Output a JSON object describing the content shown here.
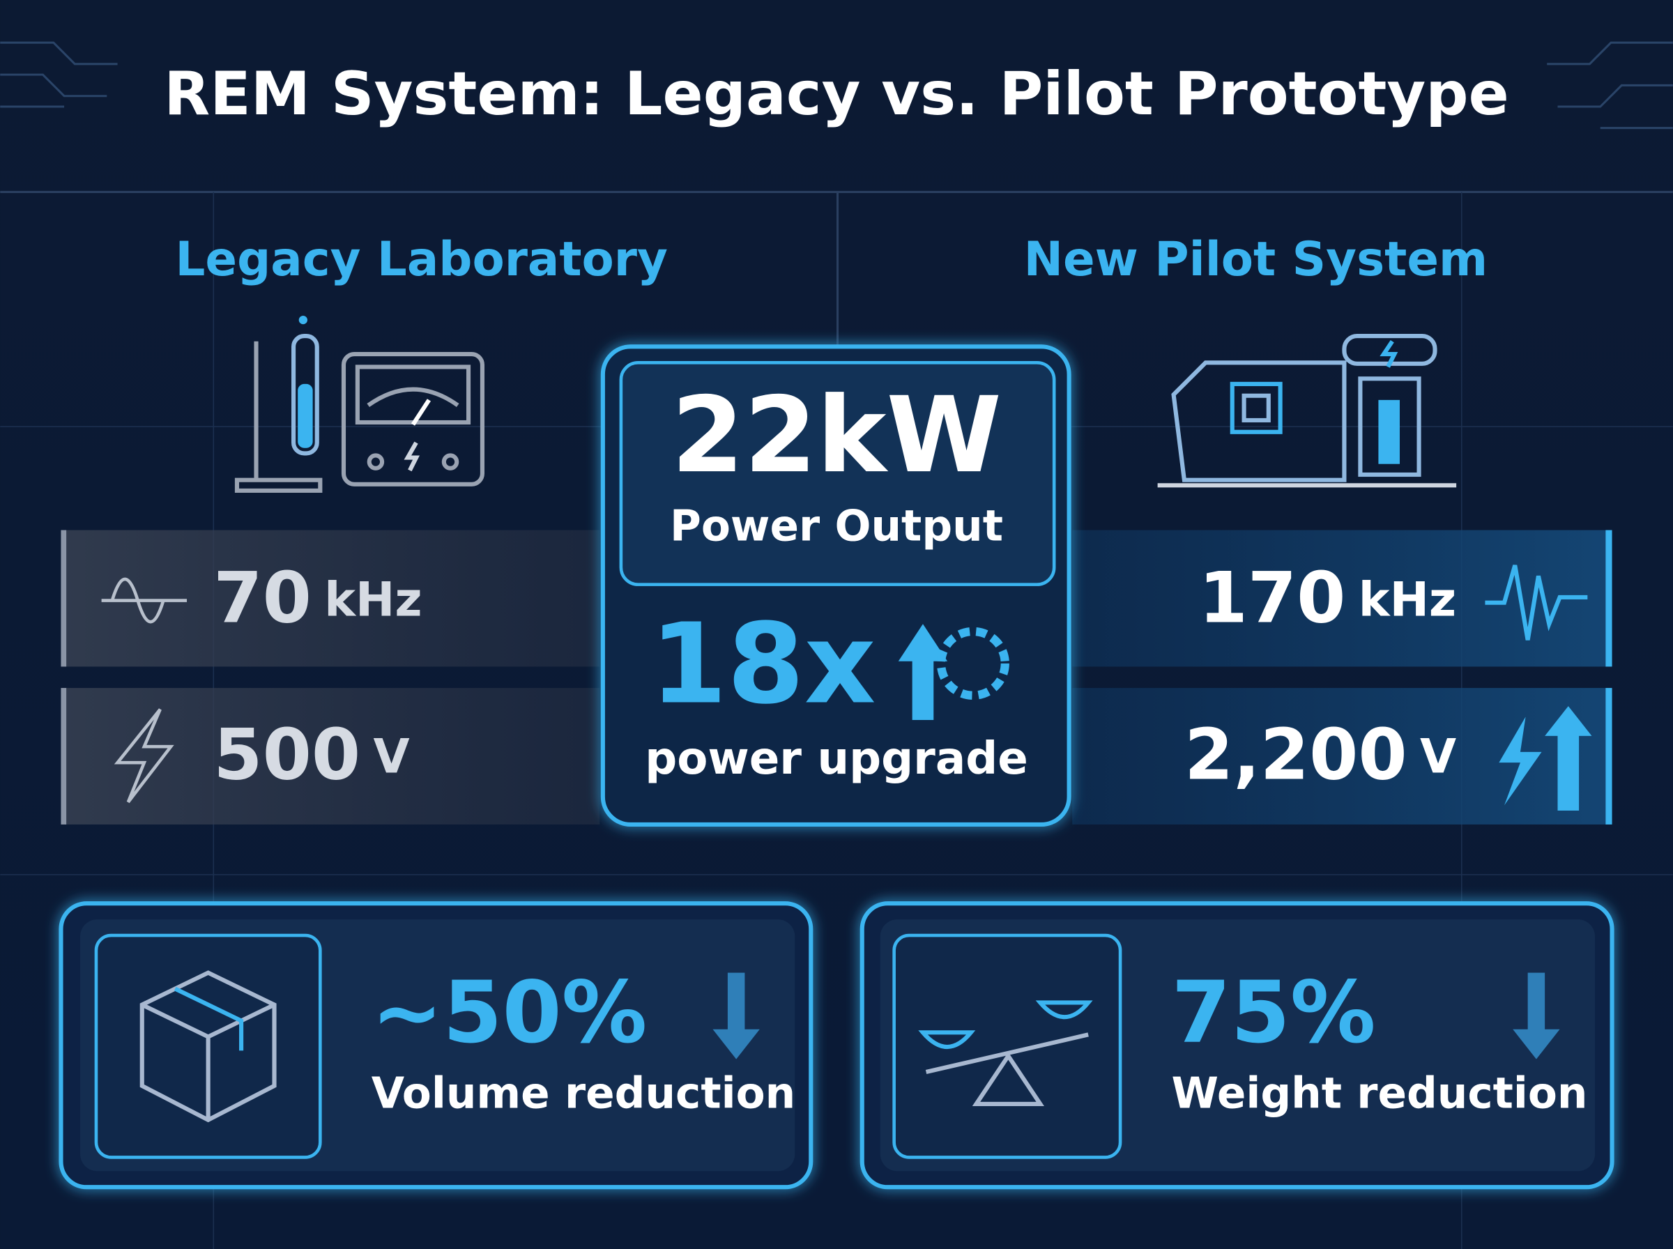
{
  "title": "REM System: Legacy vs. Pilot Prototype",
  "legacy": {
    "heading": "Legacy Laboratory",
    "frequency": {
      "value": "70",
      "unit": "kHz"
    },
    "voltage": {
      "value": "500",
      "unit": "V"
    }
  },
  "pilot": {
    "heading": "New Pilot System",
    "frequency": {
      "value": "170",
      "unit": "kHz"
    },
    "voltage": {
      "value": "2,200",
      "unit": "V"
    }
  },
  "center": {
    "power": "22kW",
    "power_label": "Power Output",
    "upgrade": "18x",
    "upgrade_label": "power upgrade"
  },
  "volume": {
    "value": "~50%",
    "label": "Volume reduction"
  },
  "weight": {
    "value": "75%",
    "label": "Weight reduction"
  }
}
